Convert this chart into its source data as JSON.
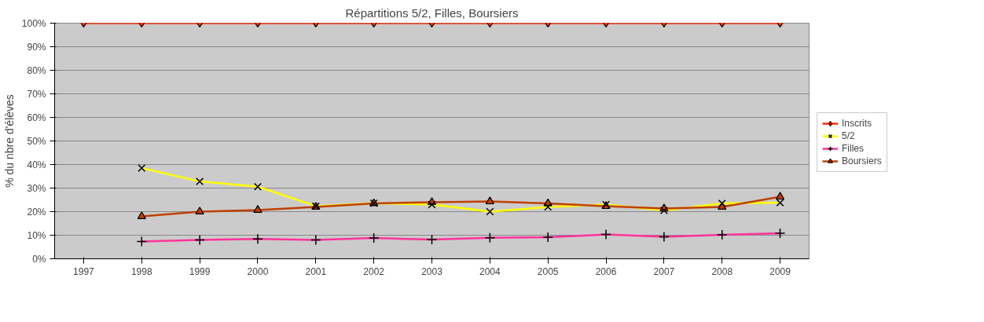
{
  "chart_data": {
    "type": "line",
    "title": "Répartitions 5/2, Filles, Boursiers",
    "ylabel": "% du nbre d'élèves",
    "categories": [
      "1997",
      "1998",
      "1999",
      "2000",
      "2001",
      "2002",
      "2003",
      "2004",
      "2005",
      "2006",
      "2007",
      "2008",
      "2009"
    ],
    "series": [
      {
        "name": "Inscrits",
        "color": "#ff2a00",
        "marker": "diamond",
        "values": [
          100,
          100,
          100,
          100,
          100,
          100,
          100,
          100,
          100,
          100,
          100,
          100,
          100
        ]
      },
      {
        "name": "5/2",
        "color": "#ffff00",
        "marker": "x",
        "values": [
          null,
          38.5,
          32.8,
          30.6,
          22.3,
          23.6,
          23.0,
          20.0,
          22.0,
          23.0,
          20.5,
          23.5,
          23.8
        ]
      },
      {
        "name": "Filles",
        "color": "#ff3399",
        "marker": "cross",
        "values": [
          null,
          7.3,
          8.0,
          8.4,
          8.0,
          8.8,
          8.2,
          8.9,
          9.2,
          10.3,
          9.3,
          10.2,
          10.8
        ]
      },
      {
        "name": "Boursiers",
        "color": "#c04000",
        "marker": "triangle",
        "values": [
          null,
          18.0,
          20.0,
          20.7,
          22.0,
          23.5,
          24.0,
          24.3,
          23.5,
          22.3,
          21.3,
          22.0,
          26.3
        ]
      }
    ],
    "ylim": [
      0,
      100
    ],
    "yticks": [
      {
        "value": 0,
        "label": "0%"
      },
      {
        "value": 10,
        "label": "10%"
      },
      {
        "value": 20,
        "label": "20%"
      },
      {
        "value": 30,
        "label": "30%"
      },
      {
        "value": 40,
        "label": "40%"
      },
      {
        "value": 50,
        "label": "50%"
      },
      {
        "value": 60,
        "label": "60%"
      },
      {
        "value": 70,
        "label": "70%"
      },
      {
        "value": 80,
        "label": "80%"
      },
      {
        "value": 90,
        "label": "90%"
      },
      {
        "value": 100,
        "label": "100%"
      }
    ],
    "grid": "y",
    "legend": "right",
    "line_style": "solid"
  }
}
